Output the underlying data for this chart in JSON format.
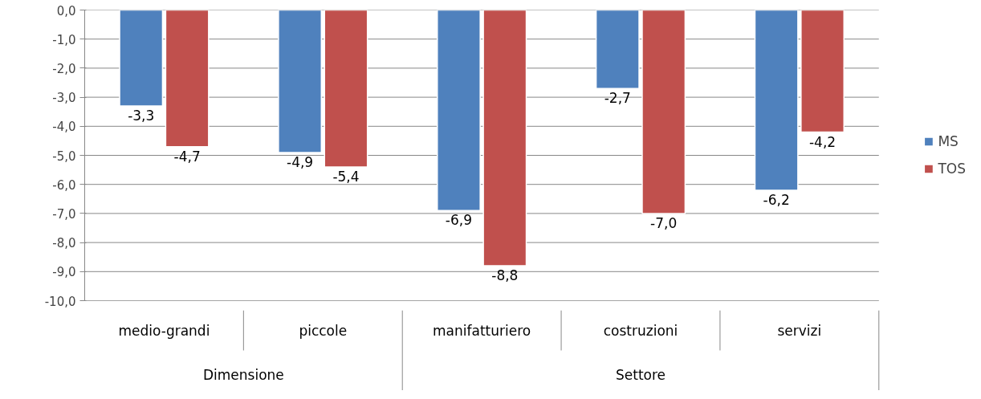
{
  "chart_data": {
    "type": "bar",
    "categories": [
      "medio-grandi",
      "piccole",
      "manifatturiero",
      "costruzioni",
      "servizi"
    ],
    "series": [
      {
        "name": "MS",
        "color": "#4f81bd",
        "values": [
          -3.3,
          -4.9,
          -6.9,
          -2.7,
          -6.2
        ],
        "value_labels": [
          "-3,3",
          "-4,9",
          "-6,9",
          "-2,7",
          "-6,2"
        ]
      },
      {
        "name": "TOS",
        "color": "#c0504d",
        "values": [
          -4.7,
          -5.4,
          -8.8,
          -7.0,
          -4.2
        ],
        "value_labels": [
          "-4,7",
          "-5,4",
          "-8,8",
          "-7,0",
          "-4,2"
        ]
      }
    ],
    "ylim": [
      -10,
      0
    ],
    "yticks": [
      {
        "value": 0,
        "label": "0,0"
      },
      {
        "value": -1,
        "label": "-1,0"
      },
      {
        "value": -2,
        "label": "-2,0"
      },
      {
        "value": -3,
        "label": "-3,0"
      },
      {
        "value": -4,
        "label": "-4,0"
      },
      {
        "value": -5,
        "label": "-5,0"
      },
      {
        "value": -6,
        "label": "-6,0"
      },
      {
        "value": -7,
        "label": "-7,0"
      },
      {
        "value": -8,
        "label": "-8,0"
      },
      {
        "value": -9,
        "label": "-9,0"
      },
      {
        "value": -10,
        "label": "-10,0"
      }
    ],
    "annotations": [
      "Dimensione",
      "Settore"
    ],
    "grid": "y",
    "legend": "right"
  }
}
